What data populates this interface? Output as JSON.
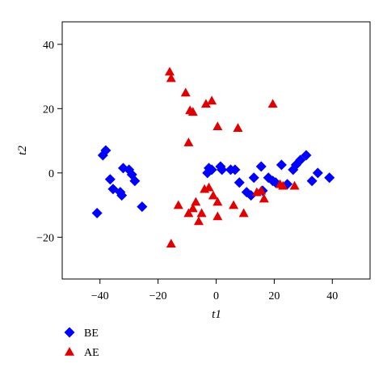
{
  "chart_data": {
    "type": "scatter",
    "xlabel": "t1",
    "ylabel": "t2",
    "xlim": [
      -53,
      53
    ],
    "ylim": [
      -33,
      47
    ],
    "xticks": [
      -40,
      -20,
      0,
      20,
      40
    ],
    "yticks": [
      -20,
      0,
      20,
      40
    ],
    "grid": false,
    "legend_position": "bottom-left",
    "series": [
      {
        "name": "BE",
        "color": "#0000ff",
        "marker": "diamond",
        "points": [
          [
            -38,
            7
          ],
          [
            -39,
            5.5
          ],
          [
            -41,
            -12.5
          ],
          [
            -36.5,
            -2
          ],
          [
            -35.5,
            -5
          ],
          [
            -33,
            -6
          ],
          [
            -32.5,
            -7
          ],
          [
            -32,
            1.5
          ],
          [
            -30,
            1
          ],
          [
            -29,
            -0.5
          ],
          [
            -28,
            -2.5
          ],
          [
            -25.5,
            -10.5
          ],
          [
            -3,
            0
          ],
          [
            -2.5,
            1.5
          ],
          [
            -1.5,
            1
          ],
          [
            1.5,
            2
          ],
          [
            2,
            1
          ],
          [
            5,
            1
          ],
          [
            6.5,
            1
          ],
          [
            8,
            -3
          ],
          [
            10.5,
            -6
          ],
          [
            12,
            -7
          ],
          [
            13,
            -1.5
          ],
          [
            15.5,
            2
          ],
          [
            16,
            -5.5
          ],
          [
            18,
            -1.5
          ],
          [
            19.5,
            -2.5
          ],
          [
            20.5,
            -3
          ],
          [
            22.5,
            2.5
          ],
          [
            24.5,
            -3.5
          ],
          [
            26.5,
            1
          ],
          [
            27.5,
            2.5
          ],
          [
            29,
            4
          ],
          [
            31,
            5.5
          ],
          [
            33,
            -2.5
          ],
          [
            35,
            0
          ],
          [
            39,
            -1.5
          ]
        ]
      },
      {
        "name": "AE",
        "color": "#e00000",
        "marker": "triangle",
        "points": [
          [
            -16,
            31.5
          ],
          [
            -15.5,
            29.5
          ],
          [
            -10.5,
            25
          ],
          [
            -3.5,
            21.5
          ],
          [
            -1.5,
            22.5
          ],
          [
            -9,
            19.5
          ],
          [
            -8,
            19
          ],
          [
            0.5,
            14.5
          ],
          [
            7.5,
            14
          ],
          [
            19.5,
            21.5
          ],
          [
            -9.5,
            9.5
          ],
          [
            -13,
            -10
          ],
          [
            -9.5,
            -12.5
          ],
          [
            -8,
            -11
          ],
          [
            -7,
            -9
          ],
          [
            -6,
            -15
          ],
          [
            -5,
            -12.5
          ],
          [
            -4,
            -5
          ],
          [
            -2.5,
            -4.5
          ],
          [
            -1,
            -7
          ],
          [
            0.5,
            -9
          ],
          [
            0.5,
            -13.5
          ],
          [
            6,
            -10
          ],
          [
            9.5,
            -12.5
          ],
          [
            14,
            -6
          ],
          [
            15.5,
            -5.5
          ],
          [
            16.5,
            -8
          ],
          [
            22,
            -3.5
          ],
          [
            23,
            -4
          ],
          [
            27,
            -4
          ],
          [
            -15.5,
            -22
          ]
        ]
      }
    ]
  }
}
